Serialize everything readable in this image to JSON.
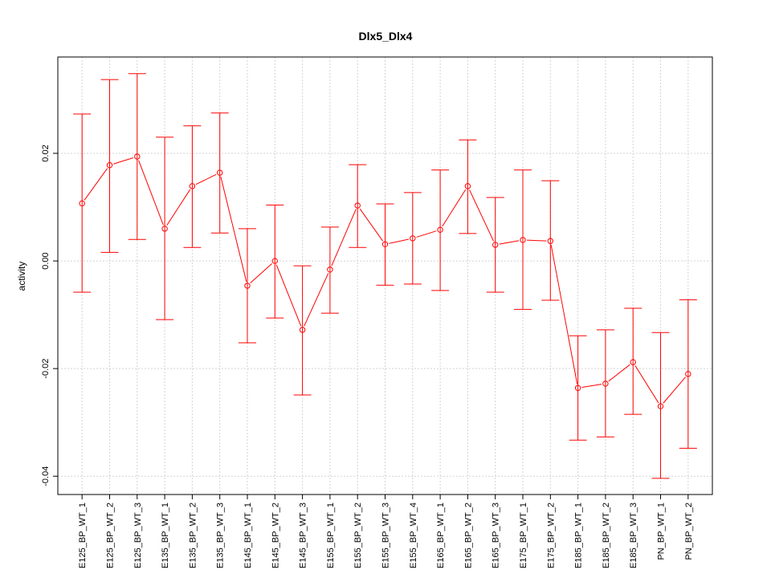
{
  "chart_data": {
    "type": "line",
    "title": "Dlx5_Dlx4",
    "xlabel": "",
    "ylabel": "activity",
    "ylim": [
      -0.0434,
      0.0379
    ],
    "yticks": [
      -0.04,
      -0.02,
      0.0,
      0.02
    ],
    "ytick_labels": [
      "-0.04",
      "-0.02",
      "0.00",
      "0.02"
    ],
    "grid": true,
    "color": "#ff0000",
    "categories": [
      "E125_BP_WT_1",
      "E125_BP_WT_2",
      "E125_BP_WT_3",
      "E135_BP_WT_1",
      "E135_BP_WT_2",
      "E135_BP_WT_3",
      "E145_BP_WT_1",
      "E145_BP_WT_2",
      "E145_BP_WT_3",
      "E155_BP_WT_1",
      "E155_BP_WT_2",
      "E155_BP_WT_3",
      "E155_BP_WT_4",
      "E165_BP_WT_1",
      "E165_BP_WT_2",
      "E165_BP_WT_3",
      "E175_BP_WT_1",
      "E175_BP_WT_2",
      "E185_BP_WT_1",
      "E185_BP_WT_2",
      "E185_BP_WT_3",
      "PN_BP_WT_1",
      "PN_BP_WT_2"
    ],
    "values": [
      0.0107,
      0.0178,
      0.0194,
      0.006,
      0.0139,
      0.0164,
      -0.0046,
      0.0,
      -0.0128,
      -0.0016,
      0.0103,
      0.0031,
      0.0042,
      0.0058,
      0.0139,
      0.003,
      0.0039,
      0.0037,
      -0.0236,
      -0.0228,
      -0.0188,
      -0.027,
      -0.021
    ],
    "upper": [
      0.0273,
      0.0337,
      0.0348,
      0.023,
      0.0251,
      0.0275,
      0.006,
      0.0104,
      -0.0009,
      0.0063,
      0.0179,
      0.0106,
      0.0127,
      0.0169,
      0.0225,
      0.0118,
      0.0169,
      0.0149,
      -0.0139,
      -0.0128,
      -0.0088,
      -0.0133,
      -0.0072
    ],
    "lower": [
      -0.0058,
      0.0016,
      0.004,
      -0.0109,
      0.0025,
      0.0052,
      -0.0152,
      -0.0106,
      -0.0249,
      -0.0097,
      0.0025,
      -0.0045,
      -0.0043,
      -0.0055,
      0.0051,
      -0.0058,
      -0.009,
      -0.0073,
      -0.0333,
      -0.0327,
      -0.0285,
      -0.0404,
      -0.0348
    ]
  }
}
